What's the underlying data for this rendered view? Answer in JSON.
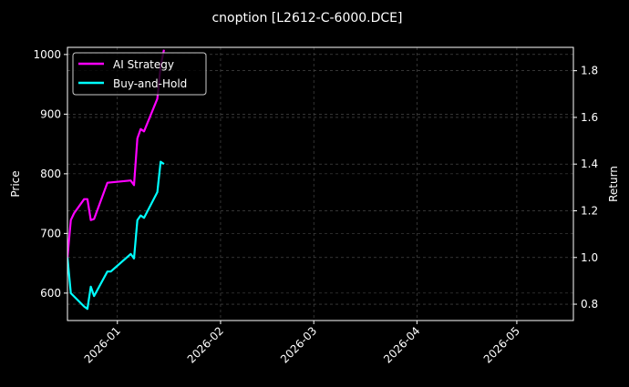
{
  "chart_data": {
    "type": "line",
    "title": "cnoption [L2612-C-6000.DCE]",
    "ylabel_left": "Price",
    "ylabel_right": "Return",
    "ylim_left": [
      554,
      1012
    ],
    "ylim_right": [
      0.73,
      1.9
    ],
    "xlim": [
      "2025-12-17",
      "2026-05-18"
    ],
    "yticks_left": [
      600,
      700,
      800,
      900,
      1000
    ],
    "yticks_right": [
      0.8,
      1.0,
      1.2,
      1.4,
      1.6,
      1.8
    ],
    "xticks": [
      "2026-01",
      "2026-02",
      "2026-03",
      "2026-04",
      "2026-05"
    ],
    "xtick_dates": [
      "2026-01-01",
      "2026-02-01",
      "2026-03-01",
      "2026-04-01",
      "2026-05-01"
    ],
    "grid": true,
    "legend_position": "top-left",
    "background": "#000000",
    "series": [
      {
        "name": "AI Strategy",
        "axis": "right",
        "color": "#ff00ff",
        "x": [
          "2025-12-17",
          "2025-12-18",
          "2025-12-19",
          "2025-12-22",
          "2025-12-23",
          "2025-12-24",
          "2025-12-25",
          "2025-12-29",
          "2026-01-05",
          "2026-01-06",
          "2026-01-07",
          "2026-01-08",
          "2026-01-09",
          "2026-01-13",
          "2026-01-14",
          "2026-01-15"
        ],
        "y": [
          1.0,
          1.16,
          1.19,
          1.25,
          1.25,
          1.16,
          1.165,
          1.32,
          1.33,
          1.31,
          1.51,
          1.55,
          1.54,
          1.68,
          1.82,
          1.89
        ]
      },
      {
        "name": "Buy-and-Hold",
        "axis": "right",
        "color": "#00ffff",
        "x": [
          "2025-12-17",
          "2025-12-18",
          "2025-12-22",
          "2025-12-23",
          "2025-12-24",
          "2025-12-25",
          "2025-12-29",
          "2025-12-30",
          "2026-01-05",
          "2026-01-06",
          "2026-01-07",
          "2026-01-08",
          "2026-01-09",
          "2026-01-13",
          "2026-01-14",
          "2026-01-15"
        ],
        "y": [
          1.0,
          0.847,
          0.79,
          0.78,
          0.875,
          0.835,
          0.94,
          0.94,
          1.015,
          0.996,
          1.16,
          1.18,
          1.17,
          1.28,
          1.41,
          1.4
        ]
      }
    ]
  }
}
